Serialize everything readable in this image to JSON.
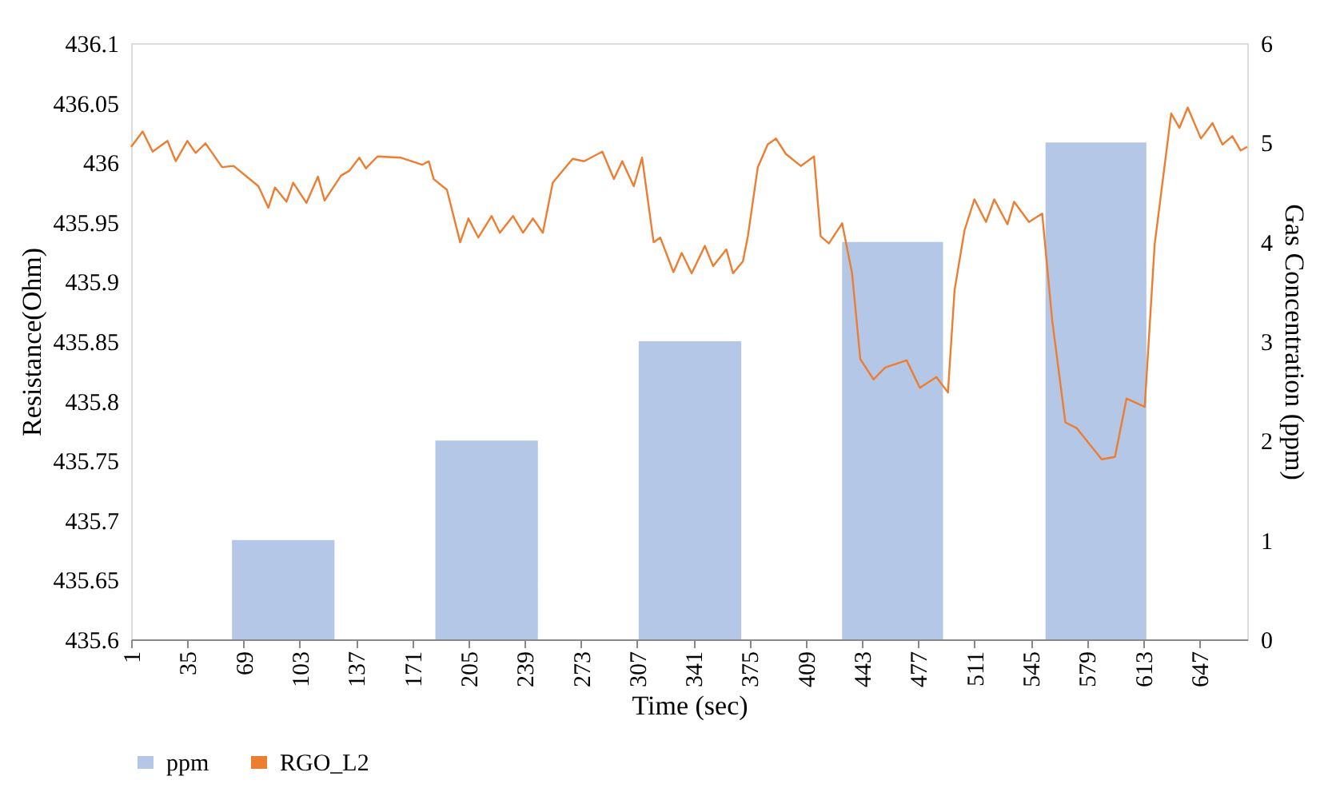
{
  "chart_data": {
    "type": "line",
    "xlabel": "Time (sec)",
    "ylabel": "Resistance(Ohm)",
    "y2label": "Gas Concentration (ppm)",
    "xlim": [
      1,
      676
    ],
    "xticks": [
      1,
      35,
      69,
      103,
      137,
      171,
      205,
      239,
      273,
      307,
      341,
      375,
      409,
      443,
      477,
      511,
      545,
      579,
      613,
      647
    ],
    "ylim": [
      435.6,
      436.1
    ],
    "yticks": [
      435.6,
      435.65,
      435.7,
      435.75,
      435.8,
      435.85,
      435.9,
      435.95,
      436,
      436.05,
      436.1
    ],
    "y2lim": [
      0,
      6
    ],
    "y2ticks": [
      0,
      1,
      2,
      3,
      4,
      5,
      6
    ],
    "grid": false,
    "legend": "bottom",
    "line_style": "solid",
    "marker": "none",
    "series": [
      {
        "name": "ppm",
        "type": "area",
        "axis": "y2",
        "color": "#b4c7e7",
        "x": [
          62,
          62,
          124,
          124,
          185,
          185,
          247,
          247,
          308,
          308,
          370,
          370,
          431,
          431,
          492,
          492,
          554,
          554,
          615,
          615
        ],
        "values": [
          0,
          1,
          1,
          0,
          0,
          2,
          2,
          0,
          0,
          3,
          3,
          0,
          0,
          4,
          4,
          0,
          0,
          5,
          5,
          0
        ]
      },
      {
        "name": "RGO_L2",
        "color": "#ed7d31",
        "x": [
          1,
          8,
          14,
          23,
          28,
          35,
          40,
          46,
          56,
          63,
          78,
          84,
          88,
          95,
          99,
          107,
          114,
          118,
          128,
          133,
          139,
          143,
          150,
          164,
          177,
          181,
          184,
          192,
          200,
          205,
          211,
          219,
          224,
          232,
          238,
          244,
          250,
          256,
          268,
          275,
          286,
          293,
          298,
          305,
          310,
          317,
          321,
          329,
          334,
          340,
          348,
          353,
          361,
          365,
          371,
          374,
          380,
          386,
          391,
          397,
          406,
          414,
          418,
          423,
          431,
          437,
          442,
          450,
          457,
          470,
          478,
          488,
          495,
          499,
          505,
          511,
          518,
          523,
          531,
          535,
          544,
          552,
          558,
          566,
          573,
          581,
          588,
          596,
          603,
          614,
          620,
          630,
          635,
          640,
          648,
          655,
          661,
          667,
          672,
          676
        ],
        "values": [
          436.013,
          436.026,
          436.009,
          436.018,
          436.001,
          436.018,
          436.008,
          436.016,
          435.996,
          435.997,
          435.98,
          435.962,
          435.979,
          435.967,
          435.983,
          435.966,
          435.988,
          435.968,
          435.989,
          435.993,
          436.004,
          435.995,
          436.005,
          436.004,
          435.998,
          436.001,
          435.986,
          435.977,
          435.933,
          435.953,
          435.937,
          435.955,
          435.941,
          435.955,
          435.941,
          435.953,
          435.941,
          435.983,
          436.003,
          436.001,
          436.009,
          435.986,
          436.001,
          435.98,
          436.004,
          435.933,
          435.937,
          435.908,
          435.924,
          435.907,
          435.93,
          435.913,
          435.927,
          435.907,
          435.917,
          435.938,
          435.996,
          436.015,
          436.02,
          436.007,
          435.997,
          436.005,
          435.938,
          435.932,
          435.949,
          435.907,
          435.835,
          435.818,
          435.828,
          435.834,
          435.811,
          435.82,
          435.807,
          435.893,
          435.943,
          435.969,
          435.95,
          435.969,
          435.948,
          435.967,
          435.95,
          435.957,
          435.868,
          435.782,
          435.777,
          435.763,
          435.751,
          435.753,
          435.802,
          435.795,
          435.931,
          436.041,
          436.029,
          436.046,
          436.02,
          436.033,
          436.015,
          436.022,
          436.01,
          436.013
        ]
      }
    ]
  }
}
